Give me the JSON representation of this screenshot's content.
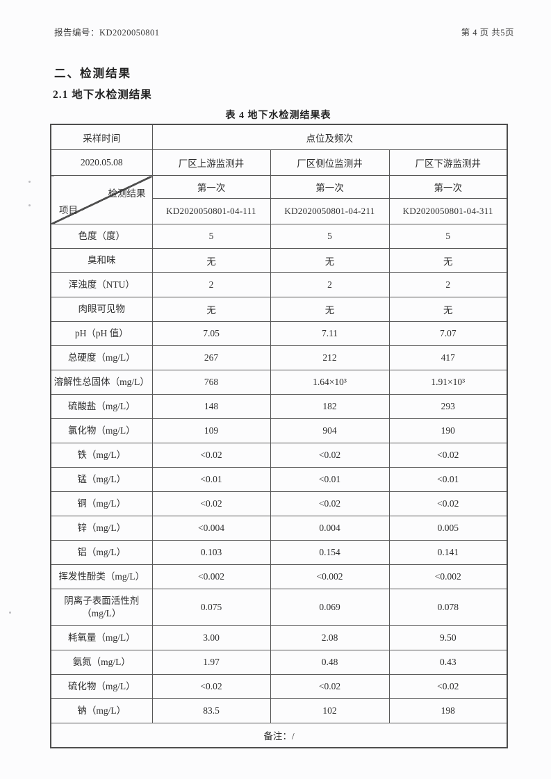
{
  "page": {
    "header_left": "报告编号：KD2020050801",
    "header_right": "第 4 页 共5页",
    "section_title": "二、检测结果",
    "subsection_title": "2.1 地下水检测结果",
    "table_title": "表 4 地下水检测结果表"
  },
  "table": {
    "header": {
      "sampling_time_label": "采样时间",
      "location_frequency_label": "点位及频次",
      "sampling_date": "2020.05.08",
      "wells": [
        "厂区上游监测井",
        "厂区侧位监测井",
        "厂区下游监测井"
      ],
      "diagonal_top_label": "检测结果",
      "diagonal_bottom_label": "项目",
      "frequencies": [
        "第一次",
        "第一次",
        "第一次"
      ],
      "sample_ids": [
        "KD2020050801-04-111",
        "KD2020050801-04-211",
        "KD2020050801-04-311"
      ]
    },
    "rows": [
      {
        "item": "色度（度）",
        "values": [
          "5",
          "5",
          "5"
        ]
      },
      {
        "item": "臭和味",
        "values": [
          "无",
          "无",
          "无"
        ]
      },
      {
        "item": "浑浊度（NTU）",
        "values": [
          "2",
          "2",
          "2"
        ]
      },
      {
        "item": "肉眼可见物",
        "values": [
          "无",
          "无",
          "无"
        ]
      },
      {
        "item": "pH（pH 值）",
        "values": [
          "7.05",
          "7.11",
          "7.07"
        ]
      },
      {
        "item": "总硬度（mg/L）",
        "values": [
          "267",
          "212",
          "417"
        ]
      },
      {
        "item": "溶解性总固体（mg/L）",
        "values": [
          "768",
          "1.64×10³",
          "1.91×10³"
        ]
      },
      {
        "item": "硫酸盐（mg/L）",
        "values": [
          "148",
          "182",
          "293"
        ]
      },
      {
        "item": "氯化物（mg/L）",
        "values": [
          "109",
          "904",
          "190"
        ]
      },
      {
        "item": "铁（mg/L）",
        "values": [
          "<0.02",
          "<0.02",
          "<0.02"
        ]
      },
      {
        "item": "锰（mg/L）",
        "values": [
          "<0.01",
          "<0.01",
          "<0.01"
        ]
      },
      {
        "item": "铜（mg/L）",
        "values": [
          "<0.02",
          "<0.02",
          "<0.02"
        ]
      },
      {
        "item": "锌（mg/L）",
        "values": [
          "<0.004",
          "0.004",
          "0.005"
        ]
      },
      {
        "item": "铝（mg/L）",
        "values": [
          "0.103",
          "0.154",
          "0.141"
        ]
      },
      {
        "item": "挥发性酚类（mg/L）",
        "values": [
          "<0.002",
          "<0.002",
          "<0.002"
        ]
      },
      {
        "item": "阴离子表面活性剂\n（mg/L）",
        "values": [
          "0.075",
          "0.069",
          "0.078"
        ],
        "tall": true
      },
      {
        "item": "耗氧量（mg/L）",
        "values": [
          "3.00",
          "2.08",
          "9.50"
        ]
      },
      {
        "item": "氨氮（mg/L）",
        "values": [
          "1.97",
          "0.48",
          "0.43"
        ]
      },
      {
        "item": "硫化物（mg/L）",
        "values": [
          "<0.02",
          "<0.02",
          "<0.02"
        ]
      },
      {
        "item": "钠（mg/L）",
        "values": [
          "83.5",
          "102",
          "198"
        ]
      }
    ],
    "note": "备注：/"
  },
  "colors": {
    "text": "#2e2e2e",
    "border": "#565656",
    "paper": "#fcfcfd"
  }
}
